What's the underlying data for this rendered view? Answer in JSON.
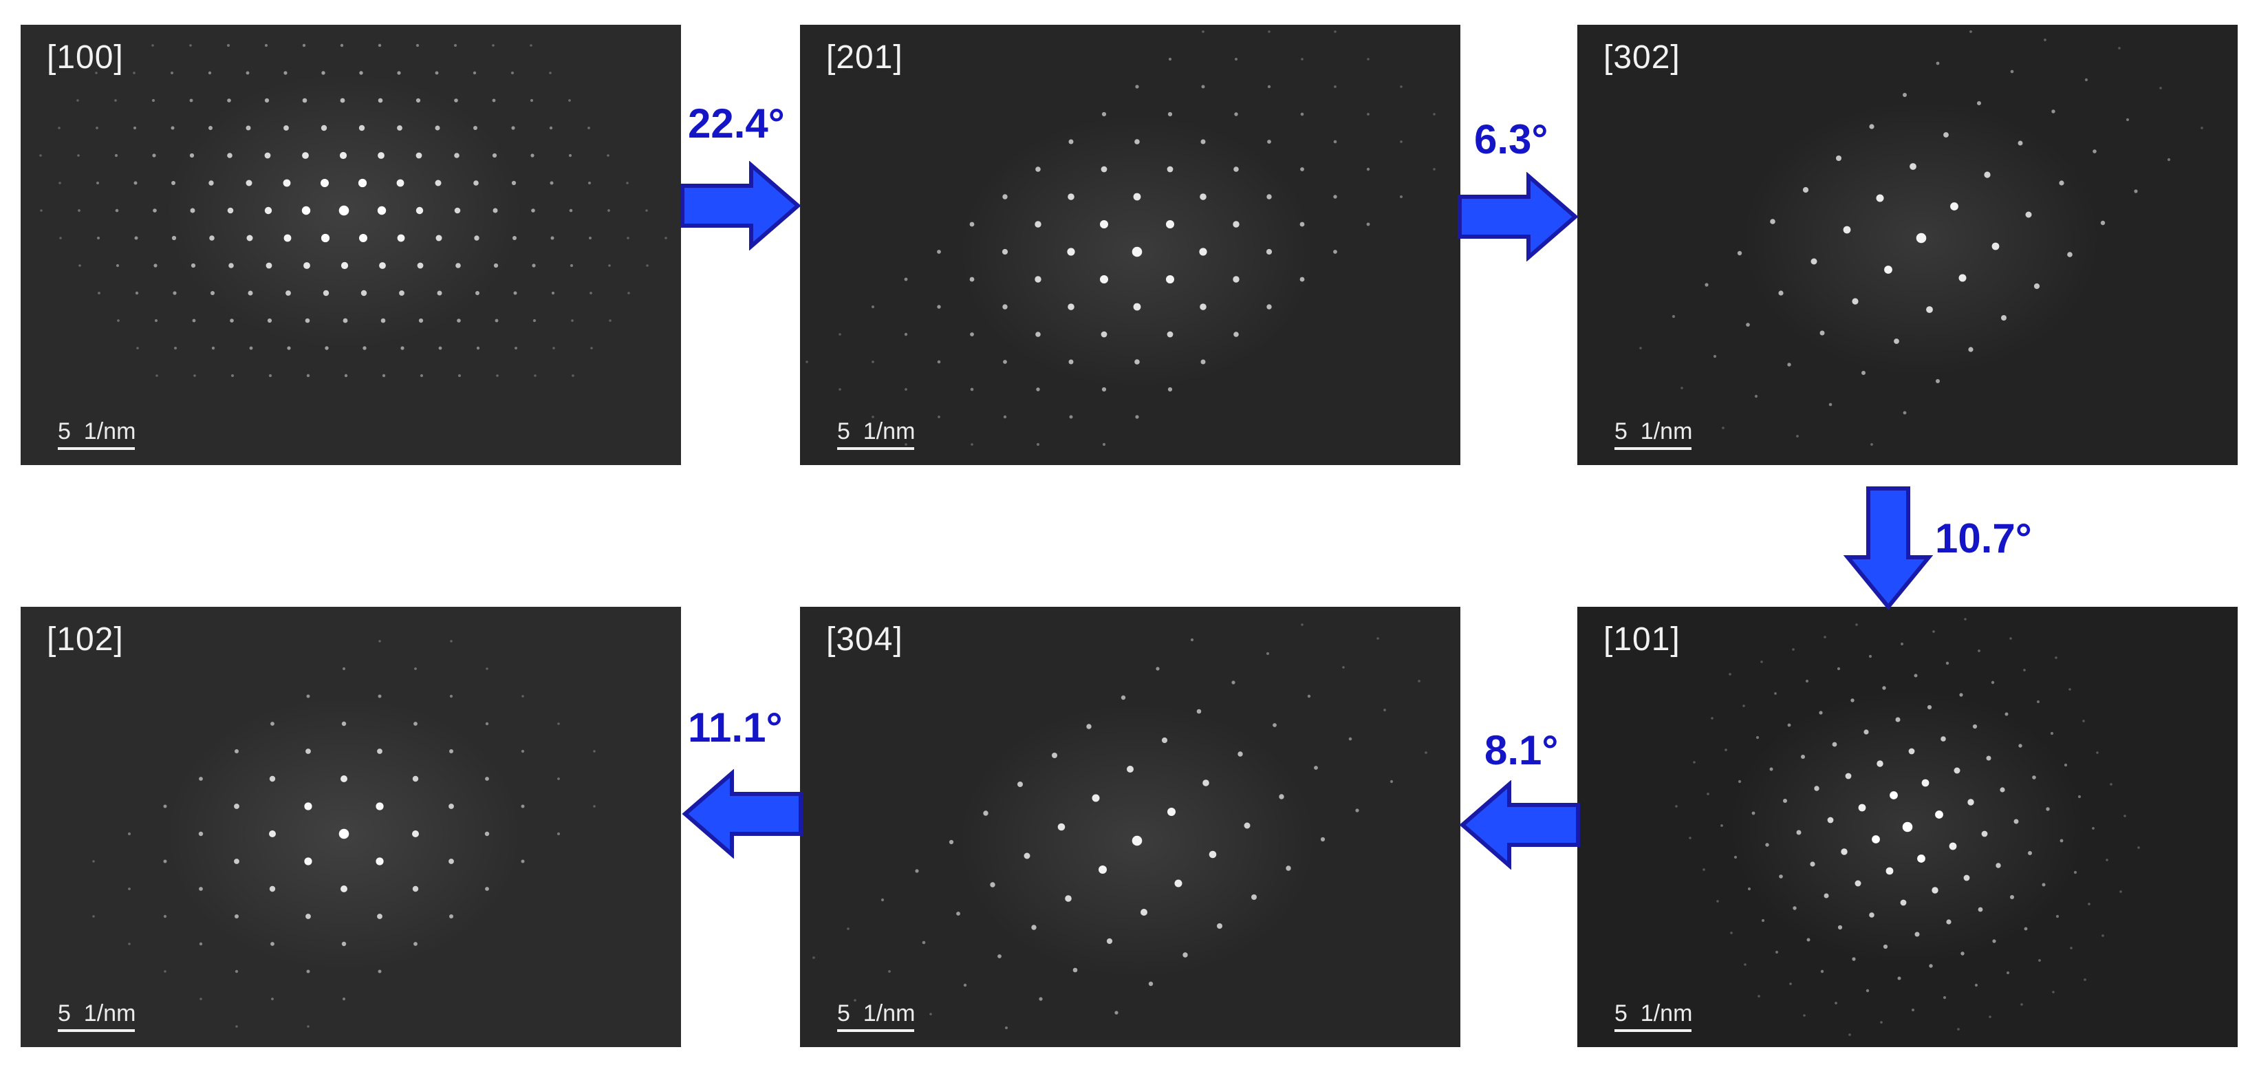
{
  "panels": [
    {
      "id": "p100",
      "zone_axis": "[100]",
      "scale_label": "5  1/nm"
    },
    {
      "id": "p201",
      "zone_axis": "[201]",
      "scale_label": "5  1/nm"
    },
    {
      "id": "p302",
      "zone_axis": "[302]",
      "scale_label": "5  1/nm"
    },
    {
      "id": "p102",
      "zone_axis": "[102]",
      "scale_label": "5  1/nm"
    },
    {
      "id": "p304",
      "zone_axis": "[304]",
      "scale_label": "5  1/nm"
    },
    {
      "id": "p101",
      "zone_axis": "[101]",
      "scale_label": "5  1/nm"
    }
  ],
  "transitions": [
    {
      "from": "[100]",
      "to": "[201]",
      "angle": "22.4°",
      "direction": "right"
    },
    {
      "from": "[201]",
      "to": "[302]",
      "angle": "6.3°",
      "direction": "right"
    },
    {
      "from": "[302]",
      "to": "[101]",
      "angle": "10.7°",
      "direction": "down"
    },
    {
      "from": "[101]",
      "to": "[304]",
      "angle": "8.1°",
      "direction": "left"
    },
    {
      "from": "[304]",
      "to": "[102]",
      "angle": "11.1°",
      "direction": "left"
    }
  ],
  "colors": {
    "arrow_fill": "#1f4dff",
    "arrow_stroke": "#1a1aa8",
    "angle_text": "#1515c8",
    "panel_background": "#2a2a2a",
    "spot": "#ffffff"
  }
}
